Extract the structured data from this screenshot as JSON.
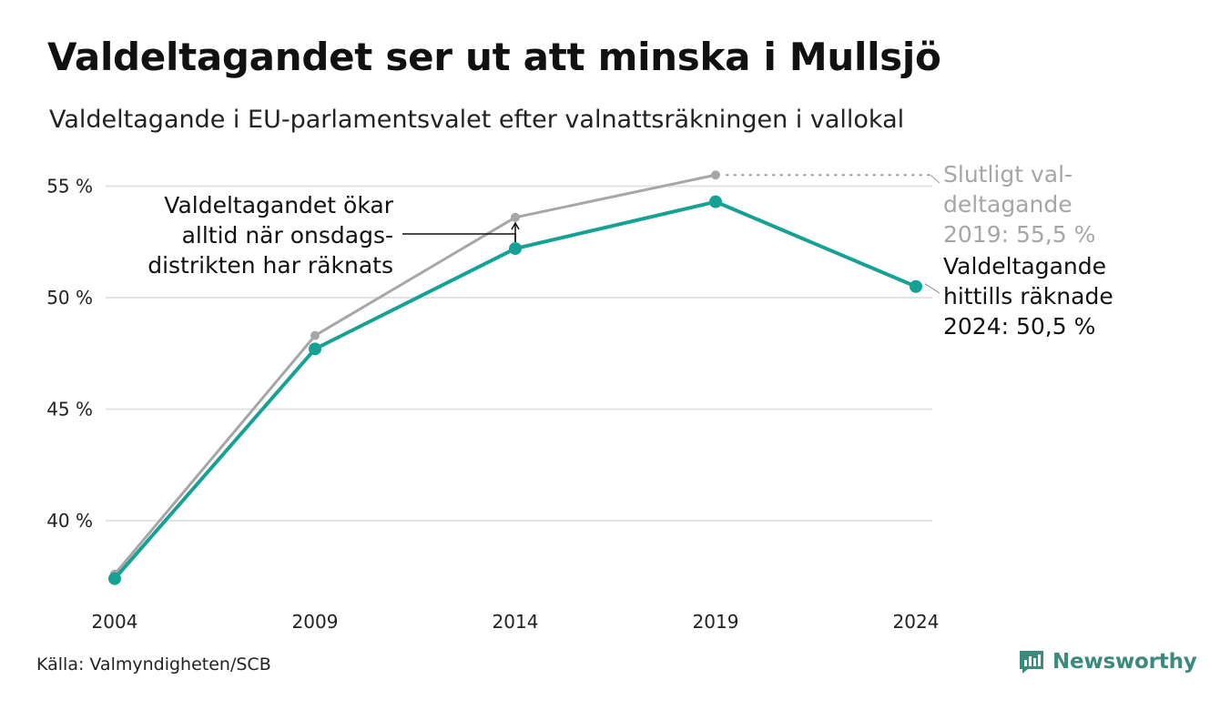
{
  "title": "Valdeltagandet ser ut att minska i Mullsjö",
  "subtitle": "Valdeltagande i EU-parlamentsvalet efter valnattsräkningen i vallokal",
  "source": "Källa: Valmyndigheten/SCB",
  "brand": "Newsworthy",
  "colors": {
    "prelim": "#16a196",
    "final": "#a6a6a6",
    "grid": "#e3e3e3",
    "brand": "#3a8b7d"
  },
  "chart_data": {
    "type": "line",
    "x": [
      "2004",
      "2009",
      "2014",
      "2019",
      "2024"
    ],
    "ylim": [
      37,
      56
    ],
    "yticks": [
      {
        "value": 40,
        "label": "40 %"
      },
      {
        "value": 45,
        "label": "45 %"
      },
      {
        "value": 50,
        "label": "50 %"
      },
      {
        "value": 55,
        "label": "55 %"
      }
    ],
    "series": [
      {
        "key": "final",
        "values": [
          37.6,
          48.3,
          53.6,
          55.5,
          null
        ]
      },
      {
        "key": "prelim",
        "values": [
          37.4,
          47.7,
          52.2,
          54.3,
          50.5
        ]
      }
    ],
    "annotations": {
      "wednesday": [
        "Valdeltagandet ökar",
        "alltid när onsdags-",
        "distrikten har räknats"
      ],
      "final_2019": [
        "Slutligt val-",
        "deltagande",
        "2019: 55,5 %"
      ],
      "current_2024": [
        "Valdeltagande",
        "hittills räknade",
        "2024: 50,5 %"
      ]
    }
  }
}
